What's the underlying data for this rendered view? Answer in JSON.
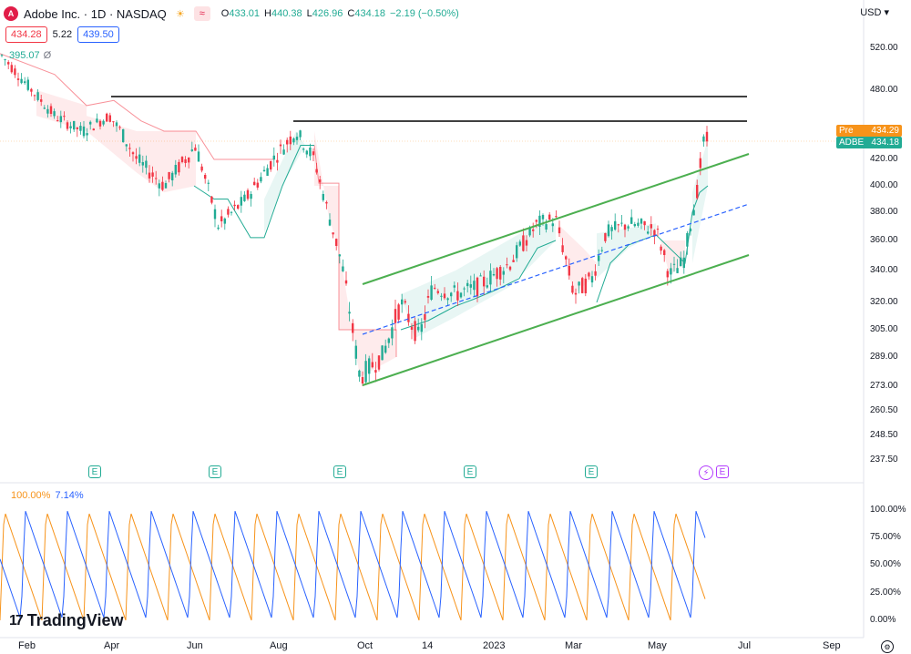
{
  "legend": {
    "symbol_title": "Adobe Inc. · 1D · NASDAQ",
    "logo_letter": "A",
    "ohlc": [
      {
        "key": "O",
        "value": "433.01"
      },
      {
        "key": "H",
        "value": "440.38"
      },
      {
        "key": "L",
        "value": "426.96"
      },
      {
        "key": "C",
        "value": "434.18"
      },
      {
        "key": "",
        "value": "−2.19 (−0.50%)"
      }
    ],
    "bid": "434.28",
    "spread": "5.22",
    "ask": "439.50",
    "indicator_value": "395.07",
    "indicator_suffix": "Ø"
  },
  "currency": "USD",
  "price_axis": [
    "520.00",
    "480.00",
    "440.00",
    "420.00",
    "400.00",
    "380.00",
    "360.00",
    "340.00",
    "320.00",
    "305.00",
    "289.00",
    "273.00",
    "260.50",
    "248.50",
    "237.50"
  ],
  "pre_tag": {
    "label": "Pre",
    "value": "434.29"
  },
  "last_tag": {
    "label": "ADBE",
    "value": "434.18"
  },
  "earnings_marker": "E",
  "time_axis": [
    "Feb",
    "Apr",
    "Jun",
    "Aug",
    "Oct",
    "14",
    "2023",
    "Mar",
    "May",
    "Jul",
    "Sep"
  ],
  "indicator": {
    "v1": "100.00%",
    "v2": "7.14%",
    "axis": [
      "100.00%",
      "75.00%",
      "50.00%",
      "25.00%",
      "0.00%"
    ]
  },
  "brand": {
    "mark": "17",
    "name": "TradingView"
  },
  "colors": {
    "up": "#22ab94",
    "down": "#f23645",
    "channel": "#4caf50",
    "mid": "#2962ff",
    "resistance": "#000000",
    "orange": "#f7931a",
    "blue": "#2962ff"
  },
  "chart_data": {
    "type": "line",
    "series": [
      {
        "name": "ADBE",
        "x": [
          "Feb",
          "Apr",
          "Jun",
          "Aug",
          "Oct",
          "14",
          "2023",
          "Mar",
          "May"
        ],
        "values": [
          500,
          450,
          400,
          440,
          280,
          320,
          345,
          340,
          434.18
        ]
      }
    ],
    "ylim": [
      237.5,
      520
    ]
  }
}
